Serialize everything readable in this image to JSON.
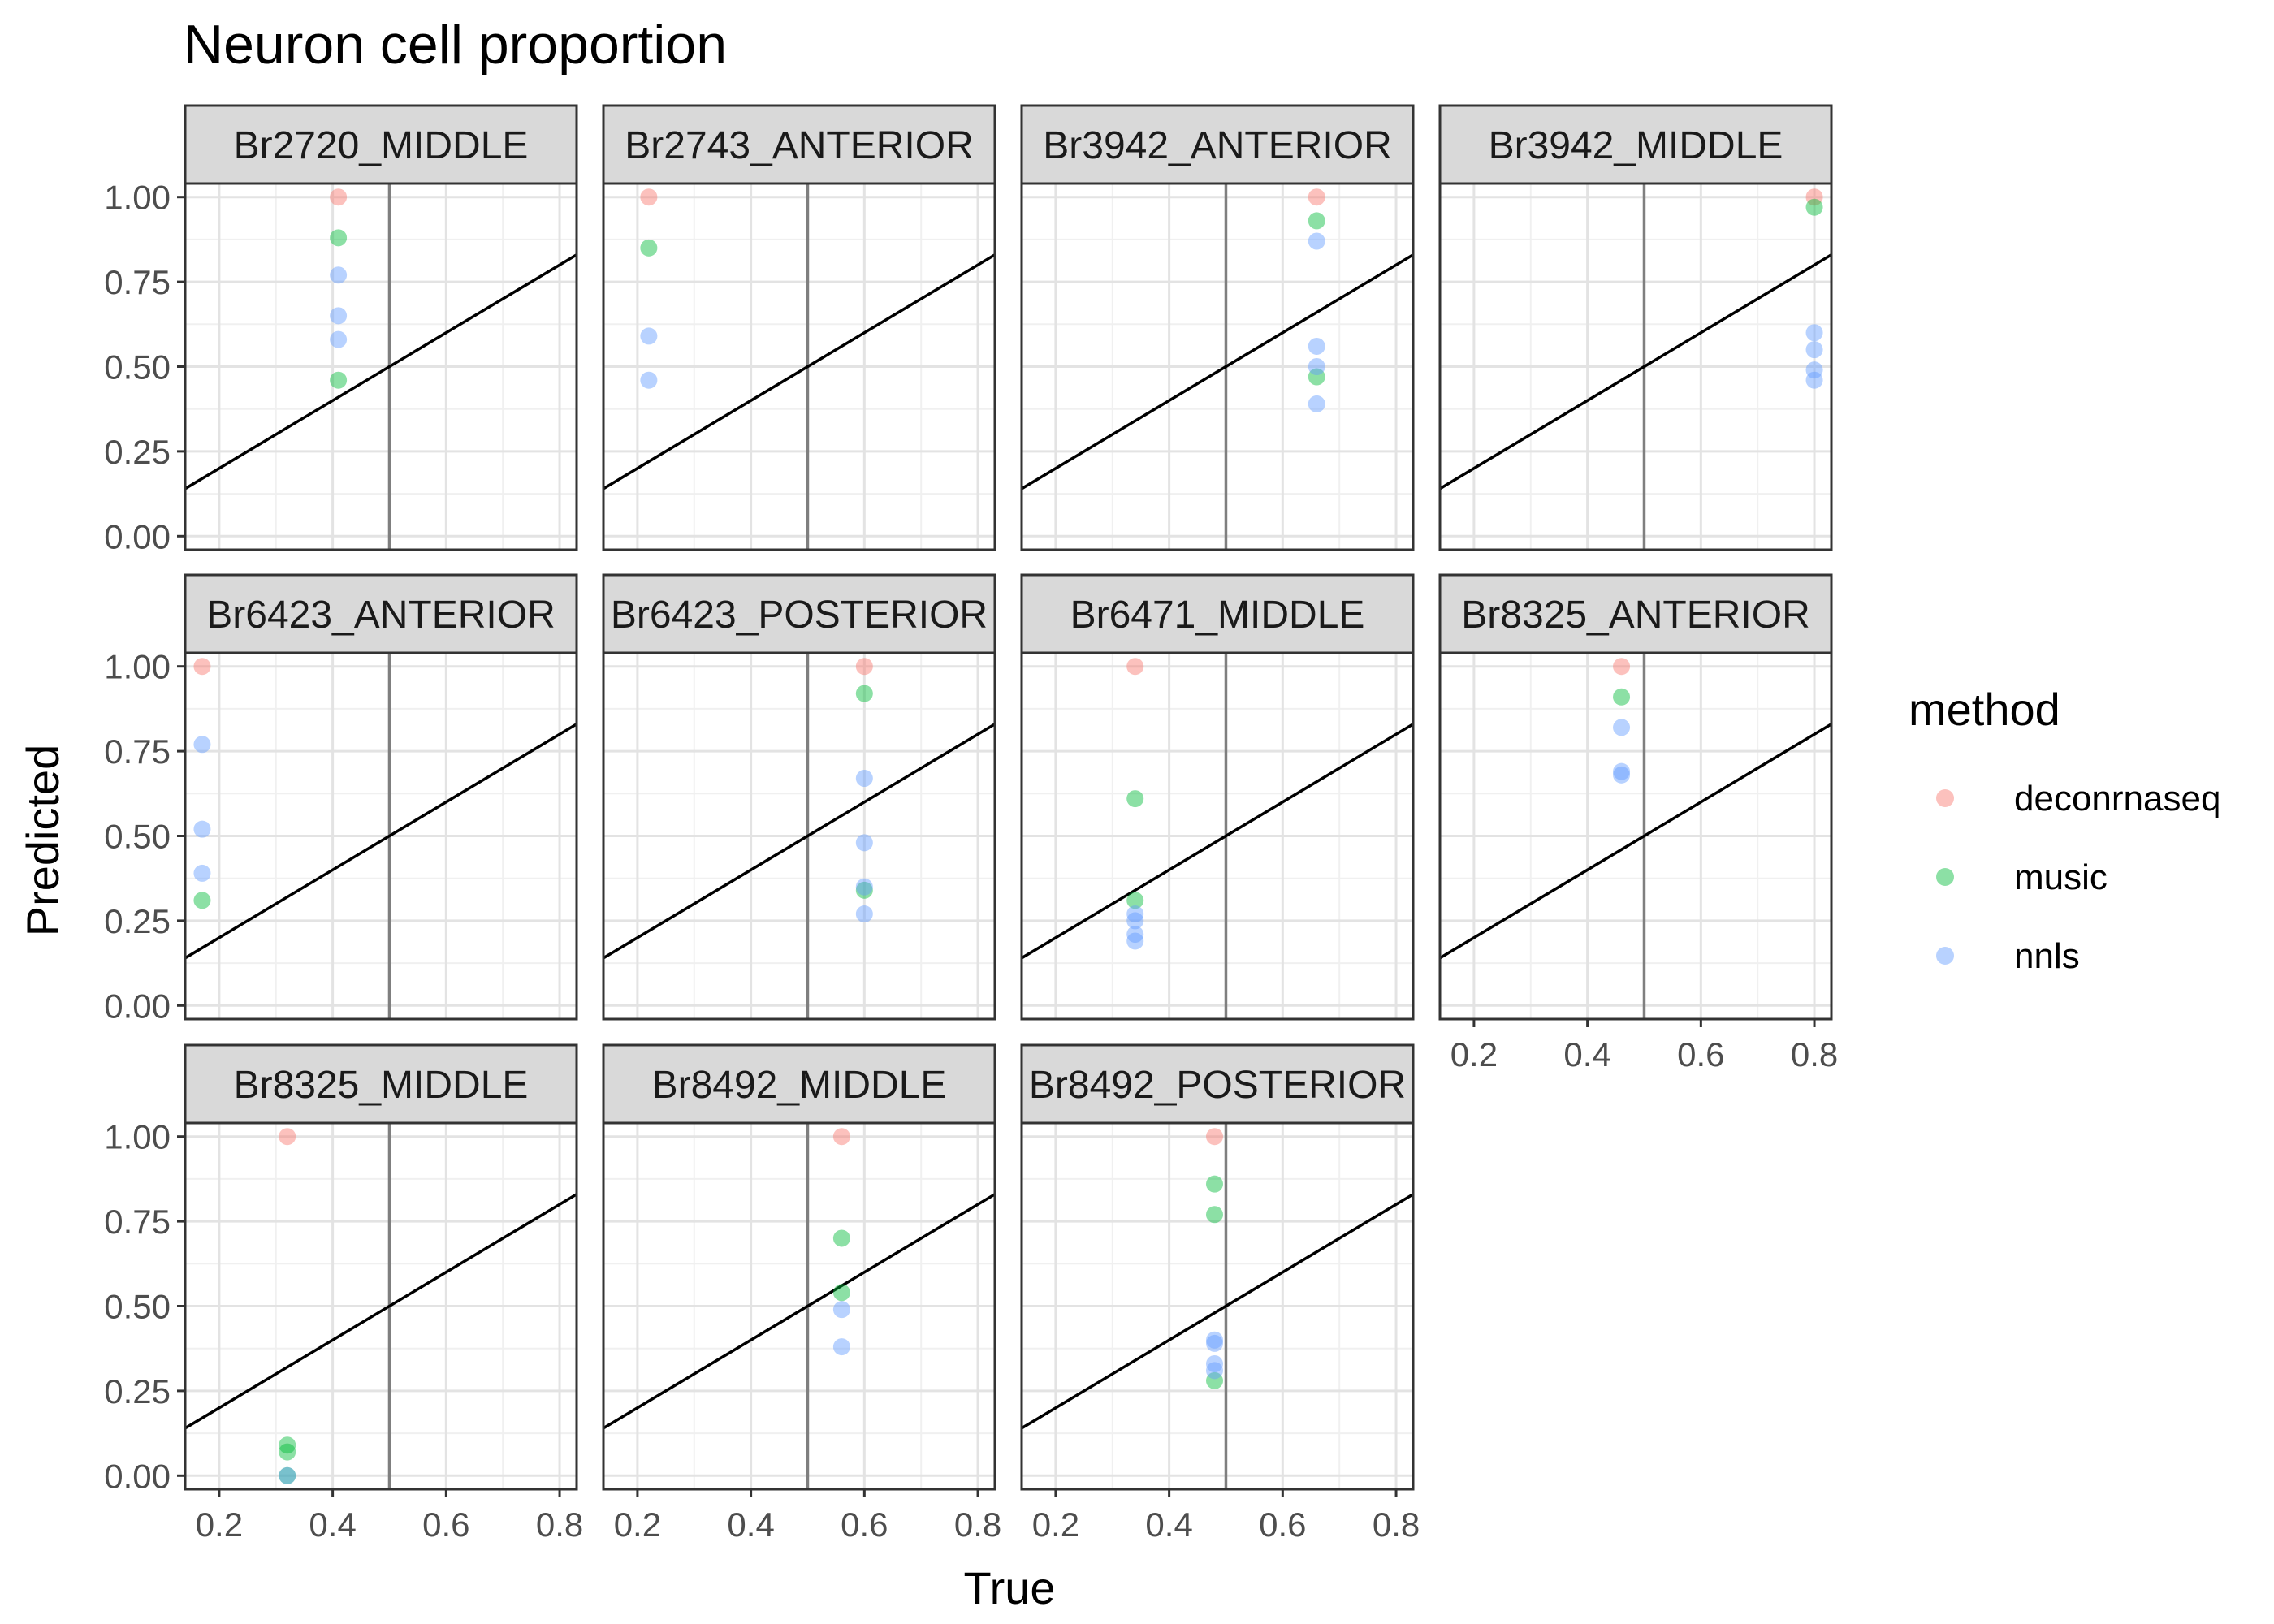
{
  "chart_data": {
    "type": "scatter",
    "title": "Neuron cell proportion",
    "xlabel": "True",
    "ylabel": "Predicted",
    "xlim": [
      0.14,
      0.83
    ],
    "ylim": [
      -0.04,
      1.04
    ],
    "xticks": [
      0.2,
      0.4,
      0.6,
      0.8
    ],
    "xtick_labels": [
      "0.2",
      "0.4",
      "0.6",
      "0.8"
    ],
    "yticks": [
      0,
      0.25,
      0.5,
      0.75,
      1.0
    ],
    "ytick_labels": [
      "0.00",
      "0.25",
      "0.50",
      "0.75",
      "1.00"
    ],
    "reference_lines": {
      "identity_slope": 1,
      "identity_intercept": 0,
      "vline_x": 0.5
    },
    "grid": true,
    "legend": {
      "title": "method",
      "position": "right",
      "entries": [
        {
          "name": "deconrnaseq",
          "color": "#F8766D"
        },
        {
          "name": "music",
          "color": "#00BA38"
        },
        {
          "name": "nnls",
          "color": "#619CFF"
        }
      ]
    },
    "facets": [
      {
        "label": "Br2720_MIDDLE",
        "points": [
          {
            "method": "deconrnaseq",
            "x": 0.41,
            "y": 1.0
          },
          {
            "method": "music",
            "x": 0.41,
            "y": 0.88
          },
          {
            "method": "music",
            "x": 0.41,
            "y": 0.46
          },
          {
            "method": "nnls",
            "x": 0.41,
            "y": 0.77
          },
          {
            "method": "nnls",
            "x": 0.41,
            "y": 0.65
          },
          {
            "method": "nnls",
            "x": 0.41,
            "y": 0.58
          }
        ]
      },
      {
        "label": "Br2743_ANTERIOR",
        "points": [
          {
            "method": "deconrnaseq",
            "x": 0.22,
            "y": 1.0
          },
          {
            "method": "music",
            "x": 0.22,
            "y": 0.85
          },
          {
            "method": "nnls",
            "x": 0.22,
            "y": 0.59
          },
          {
            "method": "nnls",
            "x": 0.22,
            "y": 0.46
          }
        ]
      },
      {
        "label": "Br3942_ANTERIOR",
        "points": [
          {
            "method": "deconrnaseq",
            "x": 0.66,
            "y": 1.0
          },
          {
            "method": "music",
            "x": 0.66,
            "y": 0.93
          },
          {
            "method": "music",
            "x": 0.66,
            "y": 0.47
          },
          {
            "method": "nnls",
            "x": 0.66,
            "y": 0.87
          },
          {
            "method": "nnls",
            "x": 0.66,
            "y": 0.56
          },
          {
            "method": "nnls",
            "x": 0.66,
            "y": 0.5
          },
          {
            "method": "nnls",
            "x": 0.66,
            "y": 0.39
          }
        ]
      },
      {
        "label": "Br3942_MIDDLE",
        "points": [
          {
            "method": "deconrnaseq",
            "x": 0.8,
            "y": 1.0
          },
          {
            "method": "music",
            "x": 0.8,
            "y": 0.97
          },
          {
            "method": "nnls",
            "x": 0.8,
            "y": 0.6
          },
          {
            "method": "nnls",
            "x": 0.8,
            "y": 0.55
          },
          {
            "method": "nnls",
            "x": 0.8,
            "y": 0.49
          },
          {
            "method": "nnls",
            "x": 0.8,
            "y": 0.46
          }
        ]
      },
      {
        "label": "Br6423_ANTERIOR",
        "points": [
          {
            "method": "deconrnaseq",
            "x": 0.17,
            "y": 1.0
          },
          {
            "method": "music",
            "x": 0.17,
            "y": 0.31
          },
          {
            "method": "nnls",
            "x": 0.17,
            "y": 0.77
          },
          {
            "method": "nnls",
            "x": 0.17,
            "y": 0.52
          },
          {
            "method": "nnls",
            "x": 0.17,
            "y": 0.39
          }
        ]
      },
      {
        "label": "Br6423_POSTERIOR",
        "points": [
          {
            "method": "deconrnaseq",
            "x": 0.6,
            "y": 1.0
          },
          {
            "method": "music",
            "x": 0.6,
            "y": 0.92
          },
          {
            "method": "music",
            "x": 0.6,
            "y": 0.34
          },
          {
            "method": "nnls",
            "x": 0.6,
            "y": 0.67
          },
          {
            "method": "nnls",
            "x": 0.6,
            "y": 0.48
          },
          {
            "method": "nnls",
            "x": 0.6,
            "y": 0.35
          },
          {
            "method": "nnls",
            "x": 0.6,
            "y": 0.27
          }
        ]
      },
      {
        "label": "Br6471_MIDDLE",
        "points": [
          {
            "method": "deconrnaseq",
            "x": 0.34,
            "y": 1.0
          },
          {
            "method": "music",
            "x": 0.34,
            "y": 0.61
          },
          {
            "method": "music",
            "x": 0.34,
            "y": 0.31
          },
          {
            "method": "nnls",
            "x": 0.34,
            "y": 0.27
          },
          {
            "method": "nnls",
            "x": 0.34,
            "y": 0.25
          },
          {
            "method": "nnls",
            "x": 0.34,
            "y": 0.21
          },
          {
            "method": "nnls",
            "x": 0.34,
            "y": 0.19
          }
        ]
      },
      {
        "label": "Br8325_ANTERIOR",
        "points": [
          {
            "method": "deconrnaseq",
            "x": 0.46,
            "y": 1.0
          },
          {
            "method": "music",
            "x": 0.46,
            "y": 0.91
          },
          {
            "method": "nnls",
            "x": 0.46,
            "y": 0.82
          },
          {
            "method": "nnls",
            "x": 0.46,
            "y": 0.69
          },
          {
            "method": "nnls",
            "x": 0.46,
            "y": 0.68
          }
        ]
      },
      {
        "label": "Br8325_MIDDLE",
        "points": [
          {
            "method": "deconrnaseq",
            "x": 0.32,
            "y": 1.0
          },
          {
            "method": "music",
            "x": 0.32,
            "y": 0.09
          },
          {
            "method": "music",
            "x": 0.32,
            "y": 0.07
          },
          {
            "method": "music",
            "x": 0.32,
            "y": 0.0
          },
          {
            "method": "nnls",
            "x": 0.32,
            "y": 0.0
          }
        ]
      },
      {
        "label": "Br8492_MIDDLE",
        "points": [
          {
            "method": "deconrnaseq",
            "x": 0.56,
            "y": 1.0
          },
          {
            "method": "music",
            "x": 0.56,
            "y": 0.7
          },
          {
            "method": "music",
            "x": 0.56,
            "y": 0.54
          },
          {
            "method": "nnls",
            "x": 0.56,
            "y": 0.49
          },
          {
            "method": "nnls",
            "x": 0.56,
            "y": 0.38
          }
        ]
      },
      {
        "label": "Br8492_POSTERIOR",
        "points": [
          {
            "method": "deconrnaseq",
            "x": 0.48,
            "y": 1.0
          },
          {
            "method": "music",
            "x": 0.48,
            "y": 0.86
          },
          {
            "method": "music",
            "x": 0.48,
            "y": 0.77
          },
          {
            "method": "music",
            "x": 0.48,
            "y": 0.28
          },
          {
            "method": "nnls",
            "x": 0.48,
            "y": 0.4
          },
          {
            "method": "nnls",
            "x": 0.48,
            "y": 0.39
          },
          {
            "method": "nnls",
            "x": 0.48,
            "y": 0.33
          },
          {
            "method": "nnls",
            "x": 0.48,
            "y": 0.31
          }
        ]
      }
    ]
  }
}
